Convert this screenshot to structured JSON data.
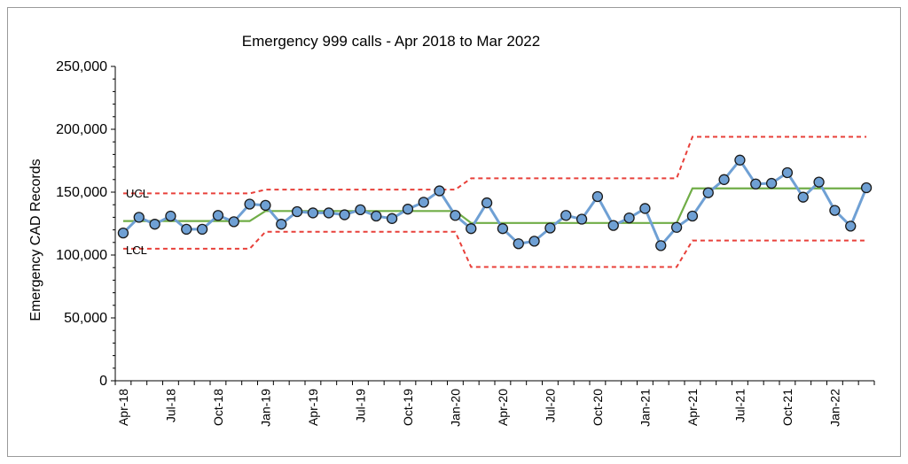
{
  "chart_data": {
    "type": "line",
    "title": "Emergency 999 calls - Apr 2018 to Mar 2022",
    "xlabel": "",
    "ylabel": "Emergency CAD Records",
    "ylim": [
      0,
      250000
    ],
    "yticks": [
      "0",
      "50,000",
      "100,000",
      "150,000",
      "200,000",
      "250,000"
    ],
    "ytick_values": [
      0,
      50000,
      100000,
      150000,
      200000,
      250000
    ],
    "x": [
      "Apr-18",
      "May-18",
      "Jun-18",
      "Jul-18",
      "Aug-18",
      "Sep-18",
      "Oct-18",
      "Nov-18",
      "Dec-18",
      "Jan-19",
      "Feb-19",
      "Mar-19",
      "Apr-19",
      "May-19",
      "Jun-19",
      "Jul-19",
      "Aug-19",
      "Sep-19",
      "Oct-19",
      "Nov-19",
      "Dec-19",
      "Jan-20",
      "Feb-20",
      "Mar-20",
      "Apr-20",
      "May-20",
      "Jun-20",
      "Jul-20",
      "Aug-20",
      "Sep-20",
      "Oct-20",
      "Nov-20",
      "Dec-20",
      "Jan-21",
      "Feb-21",
      "Mar-21",
      "Apr-21",
      "May-21",
      "Jun-21",
      "Jul-21",
      "Aug-21",
      "Sep-21",
      "Oct-21",
      "Nov-21",
      "Dec-21",
      "Jan-22",
      "Feb-22",
      "Mar-22"
    ],
    "xtick_labels": [
      "Apr-18",
      "Jul-18",
      "Oct-18",
      "Jan-19",
      "Apr-19",
      "Jul-19",
      "Oct-19",
      "Jan-20",
      "Apr-20",
      "Jul-20",
      "Oct-20",
      "Jan-21",
      "Apr-21",
      "Jul-21",
      "Oct-21",
      "Jan-22"
    ],
    "series": [
      {
        "values": [
          117500,
          130000,
          124500,
          131000,
          120500,
          120500,
          131500,
          126500,
          140500,
          139500,
          124500,
          134500,
          133500,
          133500,
          132000,
          136000,
          131000,
          129000,
          136500,
          142000,
          151000,
          131500,
          121000,
          141500,
          121000,
          109000,
          111000,
          121500,
          131500,
          128500,
          146500,
          123500,
          129500,
          137000,
          107500,
          122000,
          131000,
          149500,
          160000,
          175500,
          156500,
          157000,
          165500,
          146000,
          158000,
          135500,
          123000,
          153500
        ],
        "color": "#6fa0d4",
        "marker_color": "#6fa0d4"
      }
    ],
    "control_limits": {
      "mean": {
        "color": "#70ad47",
        "segments": [
          {
            "x_from": "Apr-18",
            "x_to": "Dec-18",
            "y": 127000
          },
          {
            "x_from": "Jan-19",
            "x_to": "Jan-20",
            "y": 135000
          },
          {
            "x_from": "Feb-20",
            "x_to": "Mar-21",
            "y": 125500
          },
          {
            "x_from": "Apr-21",
            "x_to": "Mar-22",
            "y": 153000
          }
        ]
      },
      "ucl": {
        "label": "UCL",
        "color": "#e8403a",
        "segments": [
          {
            "x_from": "Apr-18",
            "x_to": "Dec-18",
            "y": 149000
          },
          {
            "x_from": "Jan-19",
            "x_to": "Jan-20",
            "y": 152000
          },
          {
            "x_from": "Feb-20",
            "x_to": "Mar-21",
            "y": 161000
          },
          {
            "x_from": "Apr-21",
            "x_to": "Mar-22",
            "y": 194000
          }
        ]
      },
      "lcl": {
        "label": "LCL",
        "color": "#e8403a",
        "segments": [
          {
            "x_from": "Apr-18",
            "x_to": "Dec-18",
            "y": 105000
          },
          {
            "x_from": "Jan-19",
            "x_to": "Jan-20",
            "y": 118500
          },
          {
            "x_from": "Feb-20",
            "x_to": "Mar-21",
            "y": 90500
          },
          {
            "x_from": "Apr-21",
            "x_to": "Mar-22",
            "y": 111500
          }
        ]
      }
    },
    "grid": false,
    "legend": "none"
  }
}
